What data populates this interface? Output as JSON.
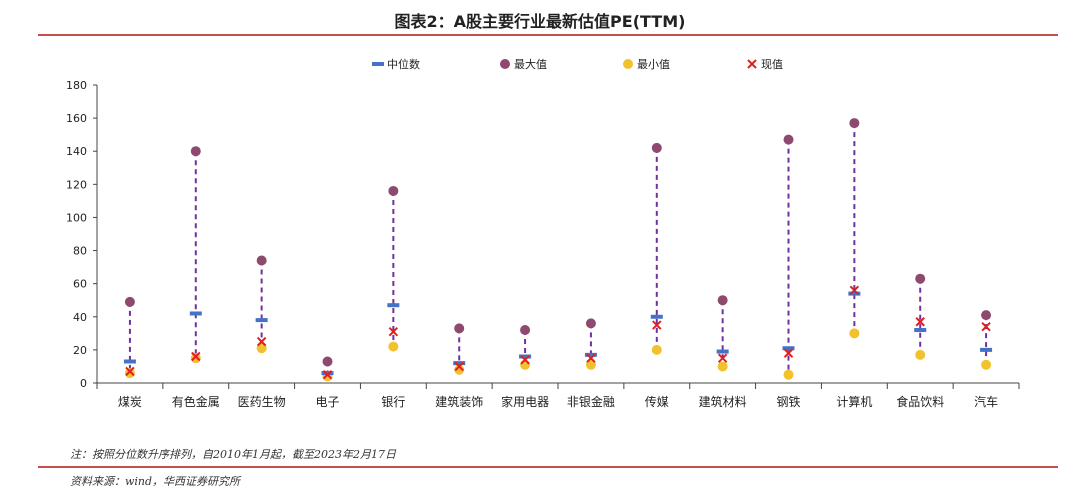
{
  "chart_data": {
    "type": "scatter",
    "title": "图表2：A股主要行业最新估值PE(TTM)",
    "xlabel": "",
    "ylabel": "",
    "ylim": [
      0,
      180
    ],
    "yticks": [
      0,
      20,
      40,
      60,
      80,
      100,
      120,
      140,
      160,
      180
    ],
    "legend_position": "top-center",
    "categories": [
      "煤炭",
      "有色金属",
      "医药生物",
      "电子",
      "银行",
      "建筑装饰",
      "家用电器",
      "非银金融",
      "传媒",
      "建筑材料",
      "钢铁",
      "计算机",
      "食品饮料",
      "汽车"
    ],
    "series": [
      {
        "name": "中位数",
        "color": "#4472c4",
        "marker": "dash",
        "values": [
          13,
          42,
          38,
          6,
          47,
          12,
          16,
          17,
          40,
          19,
          21,
          54,
          32,
          20
        ]
      },
      {
        "name": "最大值",
        "color": "#8e4a6e",
        "marker": "circle",
        "values": [
          49,
          140,
          74,
          13,
          116,
          33,
          32,
          36,
          142,
          50,
          147,
          157,
          63,
          41
        ]
      },
      {
        "name": "最小值",
        "color": "#f2c12e",
        "marker": "circle",
        "values": [
          6,
          15,
          21,
          4,
          22,
          8,
          11,
          11,
          20,
          10,
          5,
          30,
          17,
          11
        ]
      },
      {
        "name": "现值",
        "color": "#e02020",
        "marker": "x",
        "values": [
          7,
          16,
          25,
          5,
          31,
          10,
          14,
          15,
          35,
          15,
          18,
          56,
          37,
          34
        ]
      }
    ],
    "range_line_color": "#7030a0"
  },
  "note": "注：按照分位数升序排列，自2010年1月起，截至2023年2月17日",
  "source": "资料来源：wind，华西证券研究所"
}
